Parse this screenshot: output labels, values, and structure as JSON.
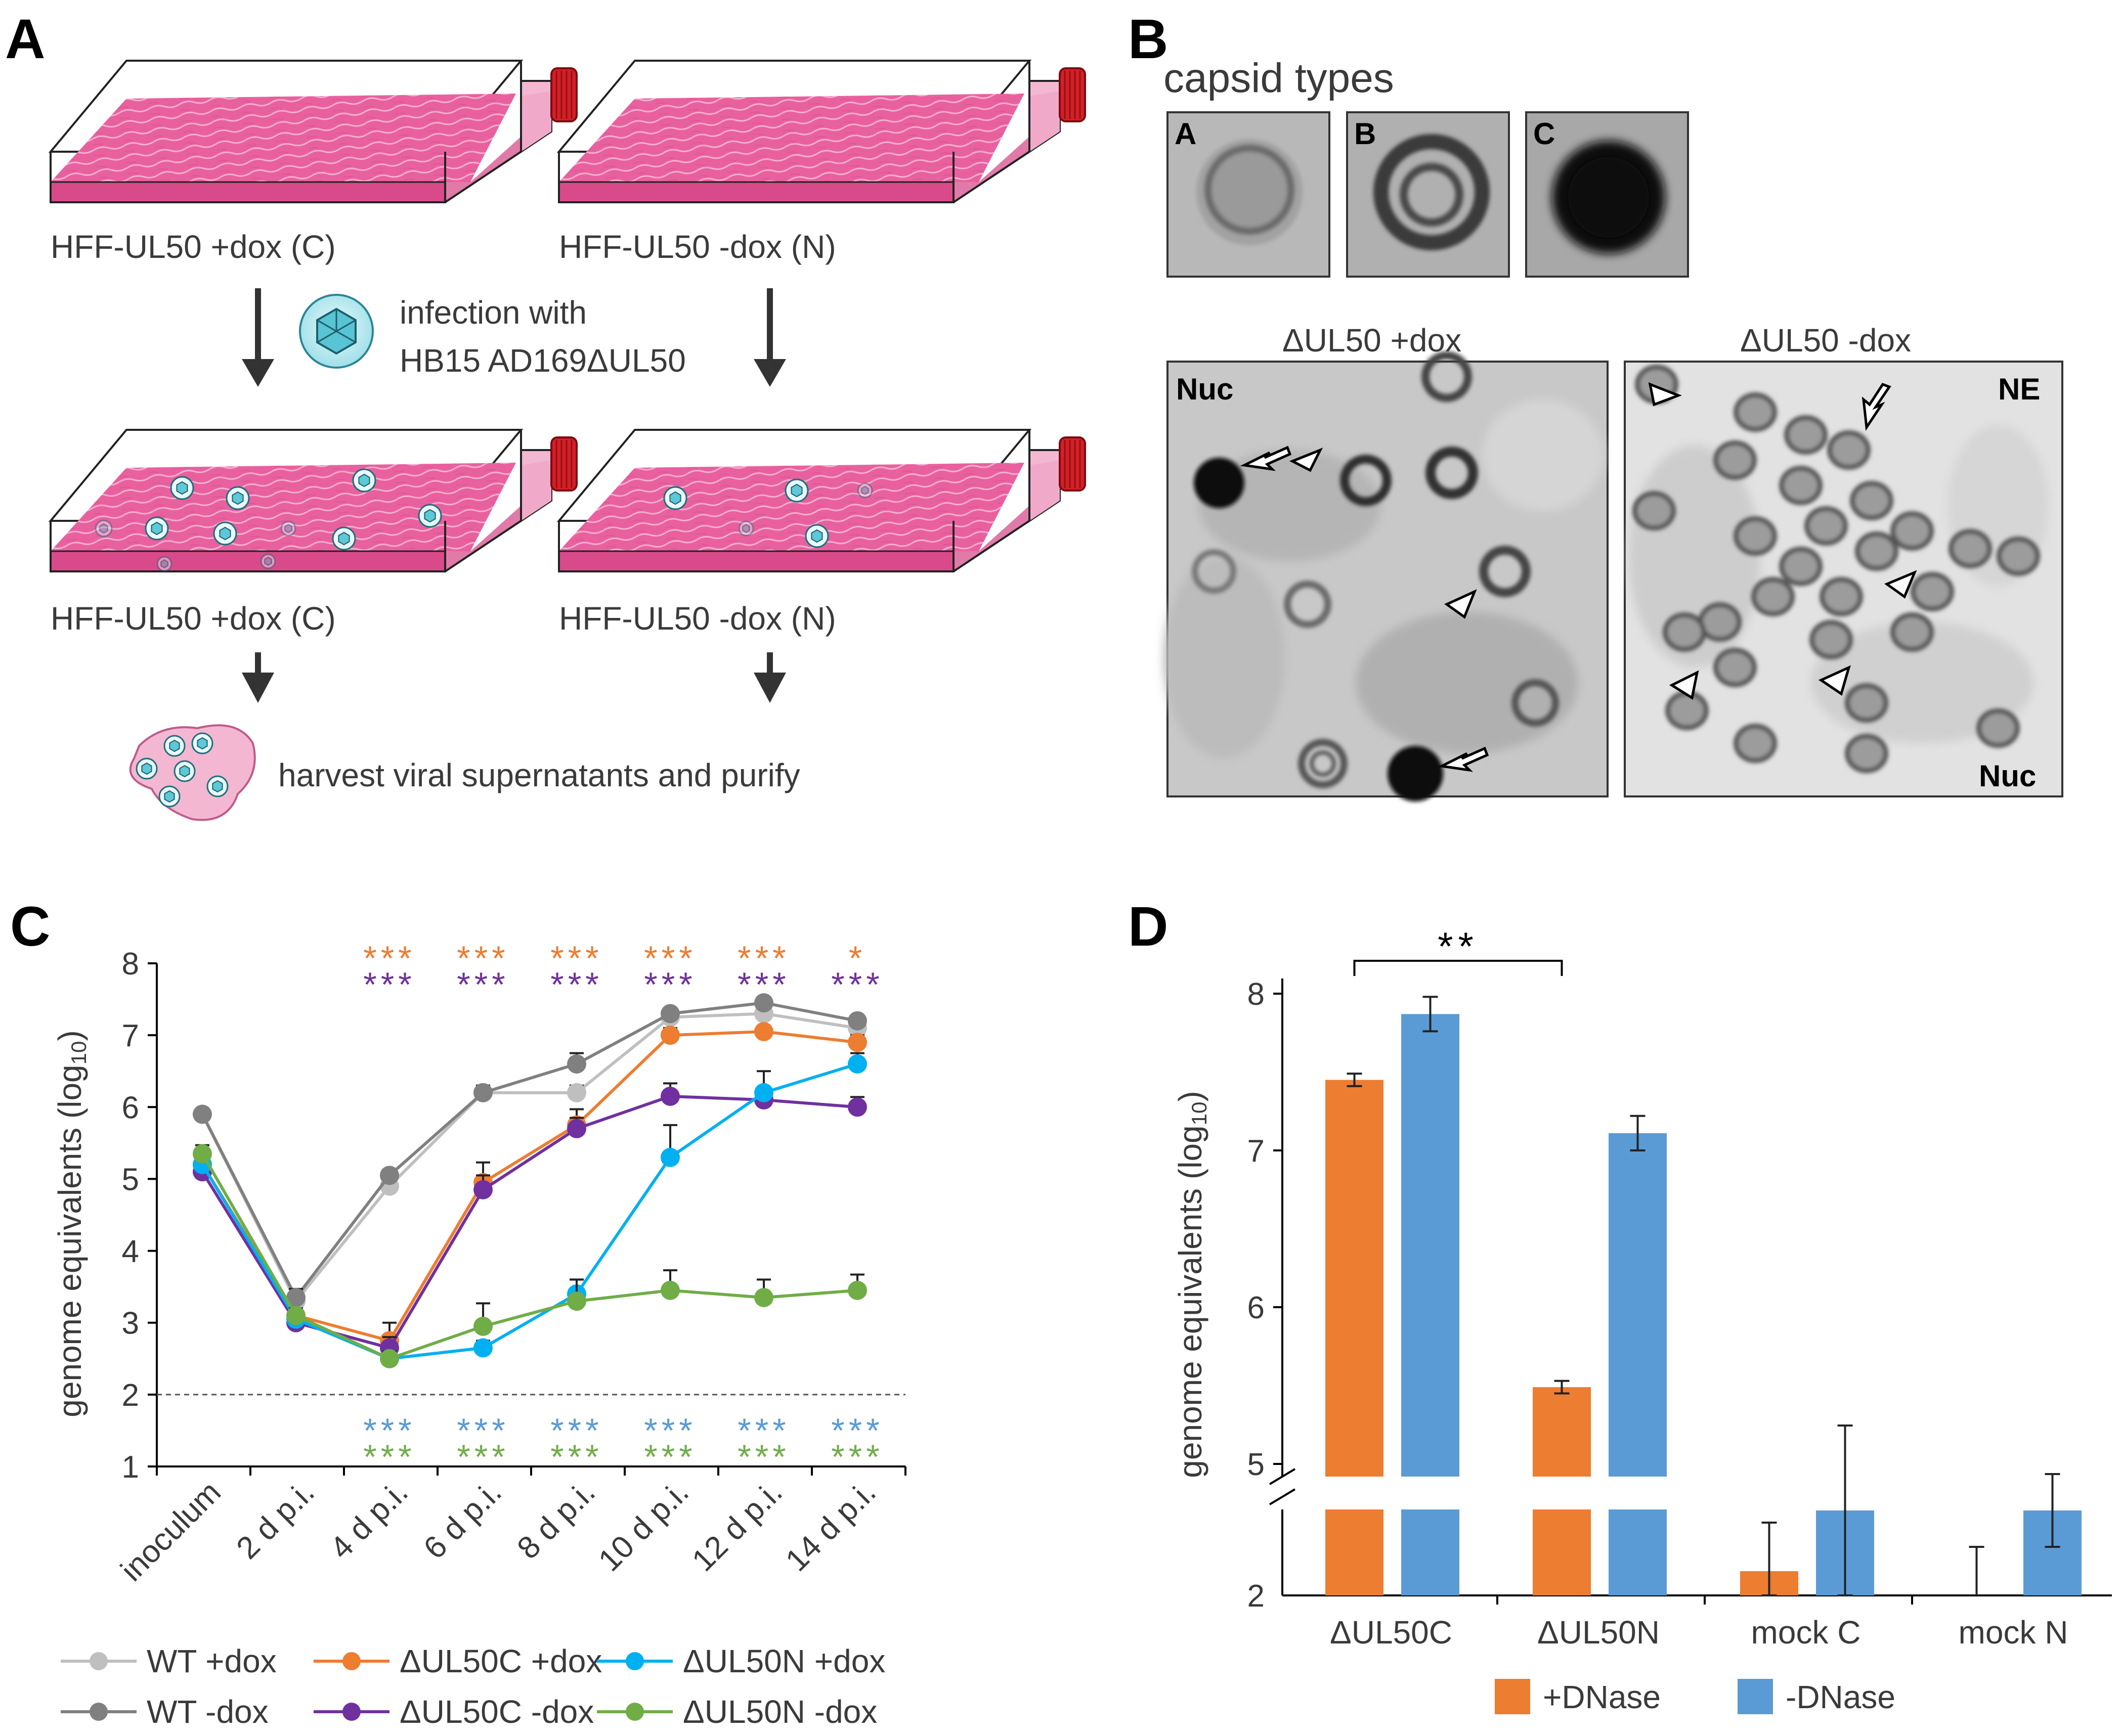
{
  "panel_letters": {
    "a": "A",
    "b": "B",
    "c": "C",
    "d": "D"
  },
  "colors": {
    "pink": "#e9609f",
    "pink_light": "#f3b7d2",
    "red_cap": "#d61f26",
    "cyan_virus": "#5cc8d8",
    "orange": "#ed7d31",
    "purple": "#7030a0",
    "cyan": "#00b0f0",
    "green": "#70ad47",
    "gray_light": "#bfbfbf",
    "gray_dark": "#808080",
    "blue_bar": "#5b9bd5"
  },
  "panel_a": {
    "flask_top_left": "HFF-UL50 +dox (C)",
    "flask_top_right": "HFF-UL50 -dox (N)",
    "infection_line1": "infection with",
    "infection_line2": "HB15 AD169ΔUL50",
    "flask_bottom_left": "HFF-UL50 +dox (C)",
    "flask_bottom_right": "HFF-UL50 -dox (N)",
    "harvest": "harvest viral supernatants and purify"
  },
  "panel_b": {
    "title": "capsid types",
    "capsid_labels": [
      "A",
      "B",
      "C"
    ],
    "em_left_title": "ΔUL50 +dox",
    "em_right_title": "ΔUL50 -dox",
    "em_left_label": "Nuc",
    "em_right_label_top": "NE",
    "em_right_label_bottom": "Nuc"
  },
  "chart_data": [
    {
      "type": "line",
      "panel": "C",
      "ylabel_main": "genome equivalents (log",
      "ylabel_sub": "10",
      "ylabel_end": ")",
      "ylim": [
        1,
        8
      ],
      "yticks": [
        "1",
        "2",
        "3",
        "4",
        "5",
        "6",
        "7",
        "8"
      ],
      "categories": [
        "inoculum",
        "2 d p.i.",
        "4 d p.i.",
        "6 d p.i.",
        "8 d p.i.",
        "10 d p.i.",
        "12 d p.i.",
        "14 d p.i."
      ],
      "detection_limit": 2,
      "series": [
        {
          "name": "WT +dox",
          "color": "#bfbfbf",
          "values": [
            5.9,
            3.3,
            4.9,
            6.2,
            6.2,
            7.25,
            7.3,
            7.1
          ],
          "err": [
            0.05,
            0.1,
            0.1,
            0.1,
            0.1,
            0.1,
            0.1,
            0.1
          ]
        },
        {
          "name": "WT -dox",
          "color": "#808080",
          "values": [
            5.9,
            3.35,
            5.05,
            6.2,
            6.6,
            7.3,
            7.45,
            7.2
          ],
          "err": [
            0.05,
            0.12,
            0.08,
            0.08,
            0.15,
            0.05,
            0.08,
            0.06
          ]
        },
        {
          "name": "ΔUL50C +dox",
          "color": "#ed7d31",
          "values": [
            5.2,
            3.1,
            2.75,
            4.95,
            5.75,
            7.0,
            7.05,
            6.9
          ],
          "err": [
            0.1,
            0.1,
            0.25,
            0.28,
            0.22,
            0.1,
            0.08,
            0.1
          ]
        },
        {
          "name": "ΔUL50C -dox",
          "color": "#7030a0",
          "values": [
            5.1,
            3.0,
            2.65,
            4.85,
            5.7,
            6.15,
            6.1,
            6.0
          ],
          "err": [
            0.1,
            0.1,
            0.15,
            0.2,
            0.15,
            0.18,
            0.1,
            0.14
          ]
        },
        {
          "name": "ΔUL50N +dox",
          "color": "#00b0f0",
          "values": [
            5.2,
            3.05,
            2.5,
            2.65,
            3.4,
            5.3,
            6.2,
            6.6
          ],
          "err": [
            0.1,
            0.1,
            0.1,
            0.1,
            0.2,
            0.45,
            0.3,
            0.15
          ]
        },
        {
          "name": "ΔUL50N -dox",
          "color": "#70ad47",
          "values": [
            5.35,
            3.1,
            2.5,
            2.95,
            3.3,
            3.45,
            3.35,
            3.45
          ],
          "err": [
            0.12,
            0.1,
            0.1,
            0.32,
            0.3,
            0.28,
            0.25,
            0.22
          ]
        }
      ],
      "significance_top": [
        {
          "text": [
            "***",
            "***",
            "***",
            "***",
            "***",
            "*"
          ],
          "color": "#ed7d31"
        },
        {
          "text": [
            "***",
            "***",
            "***",
            "***",
            "***",
            "***"
          ],
          "color": "#7030a0"
        }
      ],
      "significance_bottom": [
        {
          "text": [
            "***",
            "***",
            "***",
            "***",
            "***",
            "***"
          ],
          "color": "#5b9bd5"
        },
        {
          "text": [
            "***",
            "***",
            "***",
            "***",
            "***",
            "***"
          ],
          "color": "#70ad47"
        }
      ]
    },
    {
      "type": "bar",
      "panel": "D",
      "ylabel_main": "genome equivalents (log",
      "ylabel_sub": "10",
      "ylabel_end": ")",
      "yticks_upper": [
        "5",
        "6",
        "7",
        "8"
      ],
      "ytick_lower": "2",
      "axis_break": true,
      "categories": [
        "ΔUL50C",
        "ΔUL50N",
        "mock C",
        "mock N"
      ],
      "series": [
        {
          "name": "+DNase",
          "color": "#ed7d31",
          "values": [
            7.45,
            5.49,
            2.2,
            2.0
          ],
          "err": [
            0.04,
            0.04,
            0.4,
            0.4
          ]
        },
        {
          "name": "-DNase",
          "color": "#5b9bd5",
          "values": [
            7.87,
            7.11,
            2.7,
            2.7
          ],
          "err": [
            0.11,
            0.11,
            0.7,
            0.3
          ]
        }
      ],
      "significance": {
        "text": "**",
        "between": [
          "ΔUL50C +DNase",
          "ΔUL50N +DNase"
        ]
      }
    }
  ]
}
